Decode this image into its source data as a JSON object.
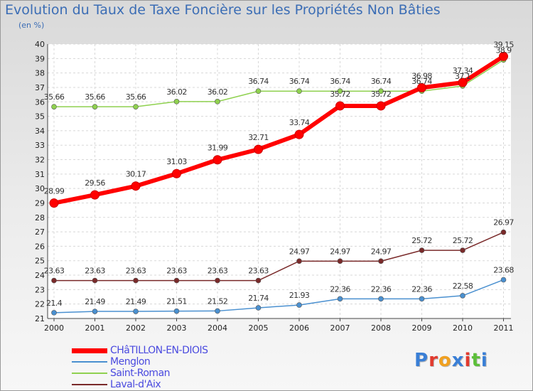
{
  "header": {
    "title": "Evolution du Taux de Taxe Foncière sur les Propriétés Non Bâties",
    "unit": "(en %)"
  },
  "logo": {
    "letters": [
      "P",
      "r",
      "o",
      "x",
      "i",
      "t",
      "i"
    ],
    "colors": [
      "#3a7fd6",
      "#e23a2e",
      "#f0a020",
      "#3a7fd6",
      "#e23a2e",
      "#5cbf3a",
      "#3a7fd6"
    ]
  },
  "chart_data": {
    "type": "line",
    "title": "Evolution du Taux de Taxe Foncière sur les Propriétés Non Bâties",
    "ylabel": "(en %)",
    "xlabel": "",
    "x": [
      "2000",
      "2001",
      "2002",
      "2003",
      "2004",
      "2005",
      "2006",
      "2007",
      "2008",
      "2009",
      "2010",
      "2011"
    ],
    "ylim": [
      21,
      40
    ],
    "yticks": [
      21,
      22,
      23,
      24,
      25,
      26,
      27,
      28,
      29,
      30,
      31,
      32,
      33,
      34,
      35,
      36,
      37,
      38,
      39,
      40
    ],
    "grid": true,
    "legend": "bottom-left",
    "series": [
      {
        "name": "CHâTILLON-EN-DIOIS",
        "color": "#ff0000",
        "values": [
          28.99,
          29.56,
          30.17,
          31.03,
          31.99,
          32.71,
          33.74,
          35.72,
          35.72,
          36.98,
          37.34,
          39.15
        ],
        "labels": [
          "28.99",
          "29.56",
          "30.17",
          "31.03",
          "31.99",
          "32.71",
          "33.74",
          "35.72",
          "35.72",
          "36.98",
          "37.34",
          "39.15"
        ]
      },
      {
        "name": "Menglon",
        "color": "#4a90d0",
        "values": [
          21.4,
          21.49,
          21.49,
          21.51,
          21.52,
          21.74,
          21.93,
          22.36,
          22.36,
          22.36,
          22.58,
          23.68
        ],
        "labels": [
          "21.4",
          "21.49",
          "21.49",
          "21.51",
          "21.52",
          "21.74",
          "21.93",
          "22.36",
          "22.36",
          "22.36",
          "22.58",
          "23.68"
        ]
      },
      {
        "name": "Saint-Roman",
        "color": "#8fd14f",
        "values": [
          35.66,
          35.66,
          35.66,
          36.02,
          36.02,
          36.74,
          36.74,
          36.74,
          36.74,
          36.74,
          37.1,
          38.9
        ],
        "labels": [
          "35.66",
          "35.66",
          "35.66",
          "36.02",
          "36.02",
          "36.74",
          "36.74",
          "36.74",
          "36.74",
          "36.74",
          "37.1",
          "38.9"
        ]
      },
      {
        "name": "Laval-d'Aix",
        "color": "#7a2a2a",
        "values": [
          23.63,
          23.63,
          23.63,
          23.63,
          23.63,
          23.63,
          24.97,
          24.97,
          24.97,
          25.72,
          25.72,
          26.97
        ],
        "labels": [
          "23.63",
          "23.63",
          "23.63",
          "23.63",
          "23.63",
          "23.63",
          "24.97",
          "24.97",
          "24.97",
          "25.72",
          "25.72",
          "26.97"
        ]
      }
    ]
  }
}
